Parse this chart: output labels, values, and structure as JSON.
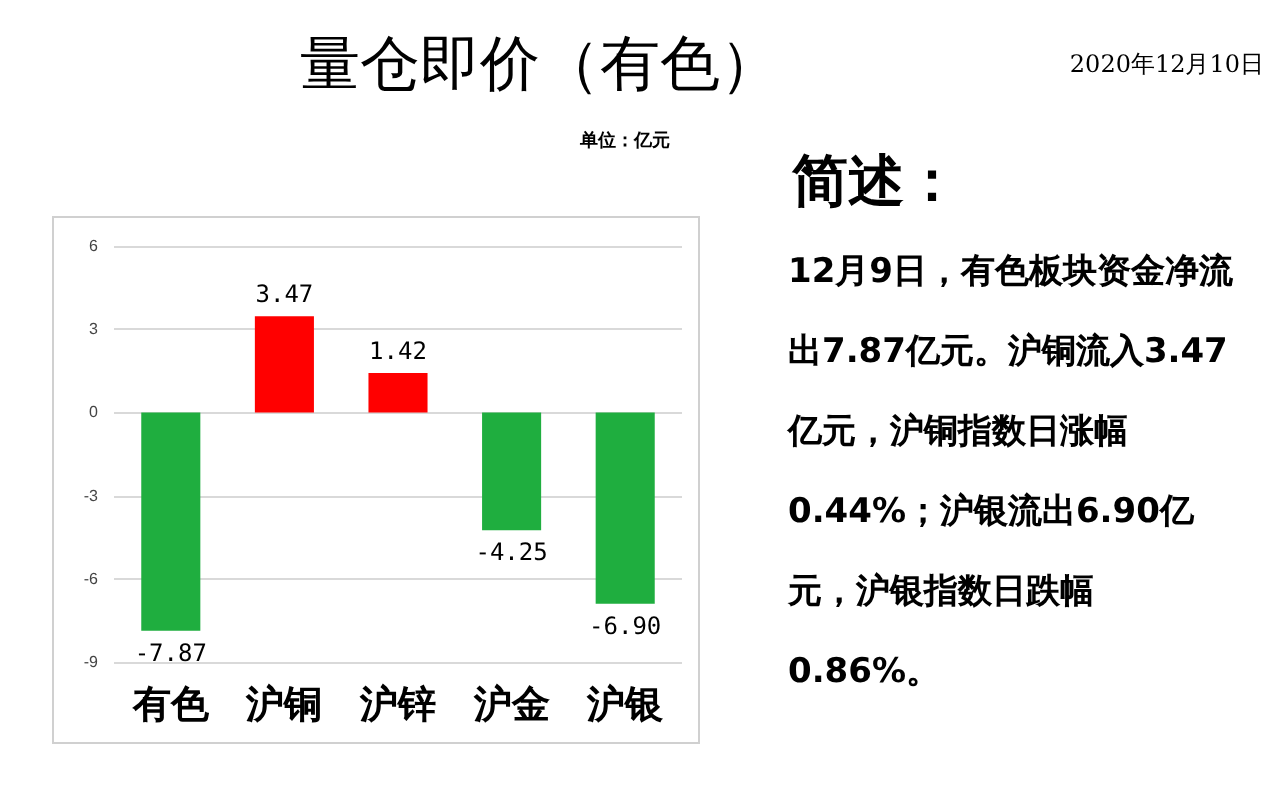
{
  "chart_data": {
    "type": "bar",
    "title": "量仓即价（有色）",
    "subtitle": "2020年12月10日",
    "ylabel": "单位：亿元",
    "categories": [
      "有色",
      "沪铜",
      "沪锌",
      "沪金",
      "沪银"
    ],
    "values": [
      -7.87,
      3.47,
      1.42,
      -4.25,
      -6.9
    ],
    "value_labels": [
      "-7.87",
      "3.47",
      "1.42",
      "-4.25",
      "-6.90"
    ],
    "colors": [
      "#1fae3f",
      "#ff0000",
      "#ff0000",
      "#1fae3f",
      "#1fae3f"
    ],
    "ylim": [
      -9,
      6
    ],
    "yticks": [
      -9,
      -6,
      -3,
      0,
      3,
      6
    ],
    "grid": "y",
    "annotations": [
      "简述：",
      "12月9日，有色板块资金净流出7.87亿元。沪铜流入3.47亿元，沪铜指数日涨幅0.44%；沪银流出6.90亿元，沪银指数日跌幅0.86%。"
    ]
  }
}
